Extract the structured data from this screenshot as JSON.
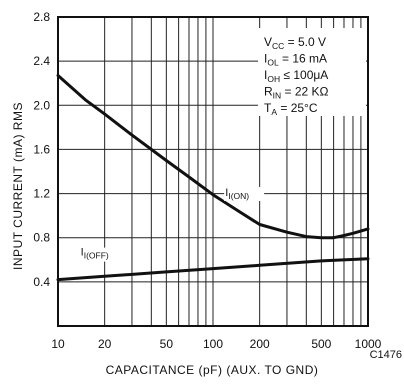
{
  "chart_data": {
    "type": "line",
    "xlabel": "CAPACITANCE (pF) (AUX. TO GND)",
    "ylabel": "INPUT CURRENT (mA) RMS",
    "x_scale": "log",
    "xlim": [
      10,
      1000
    ],
    "ylim": [
      0,
      2.8
    ],
    "x_ticks": [
      "10",
      "20",
      "50",
      "100",
      "200",
      "500",
      "1000"
    ],
    "y_ticks": [
      "0.4",
      "0.8",
      "1.2",
      "1.6",
      "2.0",
      "2.4",
      "2.8"
    ],
    "grid": "log decades (x), 0.4 mA (y)",
    "figure_code": "C1476",
    "conditions": [
      {
        "main": "V",
        "sub": "CC",
        "rest": " = 5.0 V"
      },
      {
        "main": "I",
        "sub": "OL",
        "rest": " = 16 mA"
      },
      {
        "main": "I",
        "sub": "OH",
        "rest": " ≤ 100μA"
      },
      {
        "main": "R",
        "sub": "IN",
        "rest": " = 22 KΩ"
      },
      {
        "main": "T",
        "sub": "A",
        "rest": " = 25°C"
      }
    ],
    "series": [
      {
        "name_main": "I",
        "name_sub": "I(ON)",
        "x": [
          10,
          15,
          20,
          30,
          50,
          70,
          100,
          150,
          200,
          300,
          400,
          500,
          600,
          700,
          800,
          1000
        ],
        "y": [
          2.27,
          2.05,
          1.92,
          1.73,
          1.5,
          1.35,
          1.19,
          1.03,
          0.92,
          0.85,
          0.81,
          0.8,
          0.8,
          0.82,
          0.84,
          0.88
        ]
      },
      {
        "name_main": "I",
        "name_sub": "I(OFF)",
        "x": [
          10,
          20,
          50,
          100,
          200,
          500,
          1000
        ],
        "y": [
          0.42,
          0.45,
          0.49,
          0.52,
          0.55,
          0.59,
          0.61
        ]
      }
    ]
  }
}
